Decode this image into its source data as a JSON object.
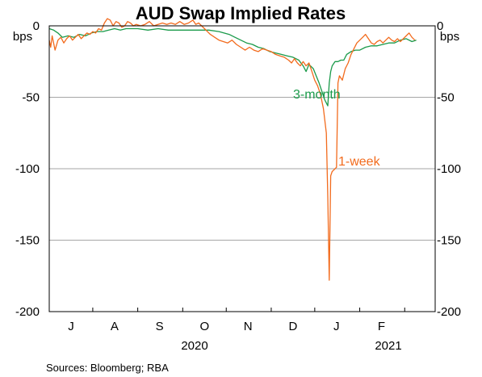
{
  "chart_data": {
    "type": "line",
    "title": "AUD Swap Implied Rates",
    "ylabel_left": "bps",
    "ylabel_right": "bps",
    "ylim": [
      -200,
      0
    ],
    "yticks": [
      0,
      -50,
      -100,
      -150,
      -200
    ],
    "xlim": [
      "2020-06-01",
      "2021-02-22"
    ],
    "month_labels": [
      "J",
      "A",
      "S",
      "O",
      "N",
      "D",
      "J",
      "F"
    ],
    "month_label_dates": [
      "2020-06-16",
      "2020-07-16",
      "2020-08-16",
      "2020-09-16",
      "2020-10-16",
      "2020-11-16",
      "2020-12-16",
      "2021-01-16"
    ],
    "year_labels": [
      "2020",
      "2021"
    ],
    "grid": true,
    "series": [
      {
        "name": "3-month",
        "color": "#1a9a4a",
        "points": [
          [
            "2020-06-01",
            -2
          ],
          [
            "2020-06-04",
            -3
          ],
          [
            "2020-06-07",
            -5
          ],
          [
            "2020-06-10",
            -8
          ],
          [
            "2020-06-14",
            -7
          ],
          [
            "2020-06-18",
            -8
          ],
          [
            "2020-06-22",
            -6
          ],
          [
            "2020-06-26",
            -7
          ],
          [
            "2020-06-30",
            -5
          ],
          [
            "2020-07-04",
            -4
          ],
          [
            "2020-07-08",
            -4
          ],
          [
            "2020-07-12",
            -3
          ],
          [
            "2020-07-16",
            -2
          ],
          [
            "2020-07-20",
            -3
          ],
          [
            "2020-07-24",
            -2
          ],
          [
            "2020-07-28",
            -2
          ],
          [
            "2020-08-01",
            -2
          ],
          [
            "2020-08-08",
            -3
          ],
          [
            "2020-08-15",
            -2
          ],
          [
            "2020-08-22",
            -3
          ],
          [
            "2020-08-29",
            -3
          ],
          [
            "2020-09-05",
            -3
          ],
          [
            "2020-09-12",
            -3
          ],
          [
            "2020-09-19",
            -3
          ],
          [
            "2020-09-26",
            -4
          ],
          [
            "2020-10-03",
            -6
          ],
          [
            "2020-10-07",
            -8
          ],
          [
            "2020-10-11",
            -10
          ],
          [
            "2020-10-15",
            -12
          ],
          [
            "2020-10-19",
            -13
          ],
          [
            "2020-10-23",
            -15
          ],
          [
            "2020-10-27",
            -16
          ],
          [
            "2020-10-31",
            -18
          ],
          [
            "2020-11-04",
            -19
          ],
          [
            "2020-11-08",
            -20
          ],
          [
            "2020-11-12",
            -21
          ],
          [
            "2020-11-16",
            -22
          ],
          [
            "2020-11-20",
            -24
          ],
          [
            "2020-11-23",
            -28
          ],
          [
            "2020-11-25",
            -32
          ],
          [
            "2020-11-27",
            -27
          ],
          [
            "2020-11-30",
            -30
          ],
          [
            "2020-12-02",
            -35
          ],
          [
            "2020-12-04",
            -40
          ],
          [
            "2020-12-06",
            -46
          ],
          [
            "2020-12-08",
            -52
          ],
          [
            "2020-12-10",
            -56
          ],
          [
            "2020-12-11",
            -40
          ],
          [
            "2020-12-12",
            -32
          ],
          [
            "2020-12-13",
            -28
          ],
          [
            "2020-12-15",
            -25
          ],
          [
            "2020-12-17",
            -25
          ],
          [
            "2020-12-19",
            -24
          ],
          [
            "2020-12-21",
            -24
          ],
          [
            "2020-12-23",
            -20
          ],
          [
            "2020-12-26",
            -18
          ],
          [
            "2020-12-29",
            -17
          ],
          [
            "2021-01-01",
            -17
          ],
          [
            "2021-01-05",
            -15
          ],
          [
            "2021-01-09",
            -14
          ],
          [
            "2021-01-13",
            -14
          ],
          [
            "2021-01-17",
            -13
          ],
          [
            "2021-01-21",
            -12
          ],
          [
            "2021-01-25",
            -12
          ],
          [
            "2021-01-29",
            -10
          ],
          [
            "2021-02-02",
            -9
          ],
          [
            "2021-02-06",
            -11
          ],
          [
            "2021-02-09",
            -10
          ]
        ]
      },
      {
        "name": "1-week",
        "color": "#f26b1d",
        "points": [
          [
            "2020-06-01",
            -10
          ],
          [
            "2020-06-02",
            -15
          ],
          [
            "2020-06-03",
            -7
          ],
          [
            "2020-06-04",
            -12
          ],
          [
            "2020-06-05",
            -17
          ],
          [
            "2020-06-07",
            -10
          ],
          [
            "2020-06-09",
            -8
          ],
          [
            "2020-06-11",
            -12
          ],
          [
            "2020-06-13",
            -9
          ],
          [
            "2020-06-15",
            -7
          ],
          [
            "2020-06-17",
            -10
          ],
          [
            "2020-06-19",
            -8
          ],
          [
            "2020-06-21",
            -6
          ],
          [
            "2020-06-23",
            -9
          ],
          [
            "2020-06-25",
            -7
          ],
          [
            "2020-06-27",
            -5
          ],
          [
            "2020-06-29",
            -6
          ],
          [
            "2020-07-01",
            -4
          ],
          [
            "2020-07-03",
            -5
          ],
          [
            "2020-07-05",
            -2
          ],
          [
            "2020-07-07",
            -3
          ],
          [
            "2020-07-09",
            2
          ],
          [
            "2020-07-11",
            5
          ],
          [
            "2020-07-13",
            4
          ],
          [
            "2020-07-15",
            0
          ],
          [
            "2020-07-17",
            3
          ],
          [
            "2020-07-19",
            2
          ],
          [
            "2020-07-21",
            -1
          ],
          [
            "2020-07-23",
            0
          ],
          [
            "2020-07-25",
            3
          ],
          [
            "2020-07-27",
            2
          ],
          [
            "2020-07-29",
            0
          ],
          [
            "2020-07-31",
            1
          ],
          [
            "2020-08-03",
            0
          ],
          [
            "2020-08-06",
            1
          ],
          [
            "2020-08-09",
            3
          ],
          [
            "2020-08-12",
            0
          ],
          [
            "2020-08-15",
            1
          ],
          [
            "2020-08-18",
            2
          ],
          [
            "2020-08-21",
            1
          ],
          [
            "2020-08-24",
            2
          ],
          [
            "2020-08-27",
            1
          ],
          [
            "2020-08-30",
            3
          ],
          [
            "2020-09-02",
            1
          ],
          [
            "2020-09-05",
            2
          ],
          [
            "2020-09-08",
            4
          ],
          [
            "2020-09-10",
            1
          ],
          [
            "2020-09-12",
            2
          ],
          [
            "2020-09-14",
            0
          ],
          [
            "2020-09-16",
            -2
          ],
          [
            "2020-09-18",
            -4
          ],
          [
            "2020-09-20",
            -6
          ],
          [
            "2020-09-23",
            -8
          ],
          [
            "2020-09-26",
            -10
          ],
          [
            "2020-09-29",
            -11
          ],
          [
            "2020-10-02",
            -12
          ],
          [
            "2020-10-05",
            -10
          ],
          [
            "2020-10-08",
            -13
          ],
          [
            "2020-10-11",
            -15
          ],
          [
            "2020-10-14",
            -17
          ],
          [
            "2020-10-17",
            -15
          ],
          [
            "2020-10-20",
            -17
          ],
          [
            "2020-10-23",
            -18
          ],
          [
            "2020-10-26",
            -16
          ],
          [
            "2020-10-29",
            -17
          ],
          [
            "2020-11-01",
            -18
          ],
          [
            "2020-11-04",
            -20
          ],
          [
            "2020-11-07",
            -21
          ],
          [
            "2020-11-10",
            -22
          ],
          [
            "2020-11-13",
            -24
          ],
          [
            "2020-11-15",
            -26
          ],
          [
            "2020-11-17",
            -23
          ],
          [
            "2020-11-19",
            -26
          ],
          [
            "2020-11-21",
            -28
          ],
          [
            "2020-11-23",
            -25
          ],
          [
            "2020-11-25",
            -28
          ],
          [
            "2020-11-27",
            -26
          ],
          [
            "2020-11-29",
            -32
          ],
          [
            "2020-12-01",
            -38
          ],
          [
            "2020-12-03",
            -42
          ],
          [
            "2020-12-05",
            -48
          ],
          [
            "2020-12-07",
            -58
          ],
          [
            "2020-12-09",
            -75
          ],
          [
            "2020-12-10",
            -120
          ],
          [
            "2020-12-11",
            -178
          ],
          [
            "2020-12-12",
            -105
          ],
          [
            "2020-12-13",
            -102
          ],
          [
            "2020-12-14",
            -101
          ],
          [
            "2020-12-15",
            -100
          ],
          [
            "2020-12-16",
            -99
          ],
          [
            "2020-12-17",
            -40
          ],
          [
            "2020-12-18",
            -35
          ],
          [
            "2020-12-20",
            -38
          ],
          [
            "2020-12-22",
            -30
          ],
          [
            "2020-12-24",
            -26
          ],
          [
            "2020-12-26",
            -20
          ],
          [
            "2020-12-28",
            -16
          ],
          [
            "2020-12-30",
            -12
          ],
          [
            "2021-01-01",
            -10
          ],
          [
            "2021-01-03",
            -8
          ],
          [
            "2021-01-05",
            -6
          ],
          [
            "2021-01-07",
            -9
          ],
          [
            "2021-01-09",
            -12
          ],
          [
            "2021-01-11",
            -13
          ],
          [
            "2021-01-13",
            -11
          ],
          [
            "2021-01-15",
            -10
          ],
          [
            "2021-01-17",
            -12
          ],
          [
            "2021-01-19",
            -10
          ],
          [
            "2021-01-21",
            -8
          ],
          [
            "2021-01-23",
            -10
          ],
          [
            "2021-01-25",
            -11
          ],
          [
            "2021-01-27",
            -9
          ],
          [
            "2021-01-29",
            -11
          ],
          [
            "2021-01-31",
            -9
          ],
          [
            "2021-02-02",
            -7
          ],
          [
            "2021-02-04",
            -5
          ],
          [
            "2021-02-06",
            -8
          ],
          [
            "2021-02-08",
            -10
          ]
        ]
      }
    ],
    "annotations": [
      "3-month",
      "1-week"
    ]
  },
  "source_text": "Sources:   Bloomberg; RBA"
}
